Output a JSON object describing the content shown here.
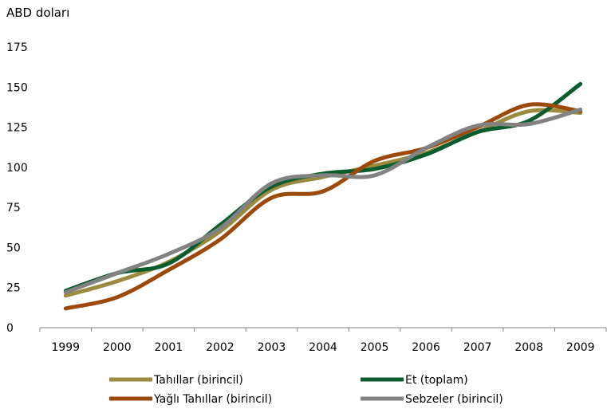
{
  "chart_data": {
    "type": "line",
    "ylabel": "ABD doları",
    "ylim": [
      0,
      175
    ],
    "yticks": [
      "0",
      "25",
      "50",
      "75",
      "100",
      "125",
      "150",
      "175"
    ],
    "ytick_values": [
      0,
      25,
      50,
      75,
      100,
      125,
      150,
      175
    ],
    "categories": [
      "1999",
      "2000",
      "2001",
      "2002",
      "2003",
      "2004",
      "2005",
      "2006",
      "2007",
      "2008",
      "2009"
    ],
    "grid": false,
    "legend_position": "bottom",
    "series": [
      {
        "name": "Tahıllar (birincil)",
        "color": "#9b8a3f",
        "values": [
          20,
          29,
          41,
          60,
          86,
          94,
          101,
          109,
          122,
          135,
          134
        ]
      },
      {
        "name": "Et (toplam)",
        "color": "#0a5c2e",
        "values": [
          23,
          34,
          40,
          64,
          88,
          96,
          99,
          108,
          122,
          129,
          152
        ]
      },
      {
        "name": "Yağlı Tahıllar (birincil)",
        "color": "#9b4a0c",
        "values": [
          12,
          19,
          36,
          55,
          81,
          85,
          104,
          112,
          125,
          139,
          135
        ]
      },
      {
        "name": "Sebzeler (birincil)",
        "color": "#828282",
        "values": [
          22,
          34,
          46,
          62,
          90,
          95,
          95,
          112,
          126,
          127,
          136
        ]
      }
    ]
  }
}
